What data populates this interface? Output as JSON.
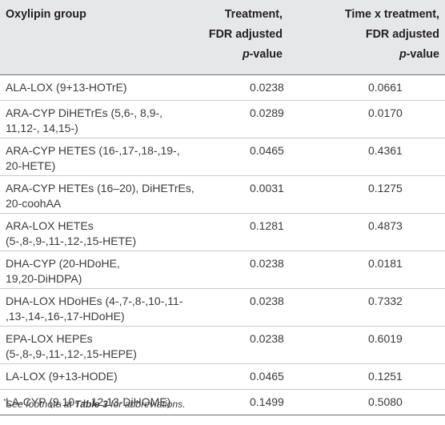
{
  "header": {
    "group": "Oxylipin group",
    "treatment": [
      "Treatment,",
      "FDR adjusted"
    ],
    "time_treatment": [
      "Time x treatment,",
      "FDR adjusted"
    ],
    "pvalue_p": "p",
    "pvalue_rest": "-value"
  },
  "rows": [
    {
      "name": "ALA-LOX (9+13-HOTrE)",
      "treatment": "0.0238",
      "time": "0.0661"
    },
    {
      "name": "ARA-CYP DiHETrEs (5,6-, 8,9-,\n11,12-, 14,15-)",
      "treatment": "0.0289",
      "time": "0.0170"
    },
    {
      "name": "ARA-CYP HETES (16-,17-,18-,19-,\n20-HETE)",
      "treatment": "0.0465",
      "time": "0.4361"
    },
    {
      "name": "ARA-CYP HETEs (16–20), DiHETrEs,\n20-coohAA",
      "treatment": "0.0031",
      "time": "0.1275"
    },
    {
      "name": "ARA-LOX HETEs\n(5-,8-,9-,11-,12-,15-HETE)",
      "treatment": "0.1281",
      "time": "0.4873"
    },
    {
      "name": "DHA-CYP (20-HDoHE,\n19,20-DiHDPA)",
      "treatment": "0.0238",
      "time": "0.0181"
    },
    {
      "name": "DHA-LOX HDoHEs (4-,7-,8-,10-,11-\n,13-,14-,16-,17-HDoHE)",
      "treatment": "0.0238",
      "time": "0.7332"
    },
    {
      "name": "EPA-LOX HEPEs\n(5-,8-,9-,11-,12-,15-HEPE)",
      "treatment": "0.0238",
      "time": "0.6019"
    },
    {
      "name": "LA-LOX (9+13-HODE)",
      "treatment": "0.0465",
      "time": "0.1251"
    },
    {
      "name": "LA-CYP (9,10- + 12,13-DiHOME)",
      "treatment": "0.1499",
      "time": "0.5080"
    }
  ],
  "footnote": {
    "marker": "*",
    "before": "See footnote at ",
    "table_ref": "Table 3",
    "after": " for abbreviations."
  }
}
